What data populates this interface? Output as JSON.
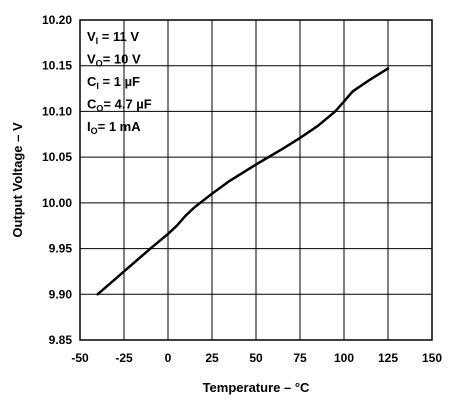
{
  "chart_data": {
    "type": "line",
    "xlabel": "Temperature – °C",
    "ylabel": "Output Voltage – V",
    "xlim": [
      -50,
      150
    ],
    "ylim": [
      9.85,
      10.2
    ],
    "xticks": [
      -50,
      -25,
      0,
      25,
      50,
      75,
      100,
      125,
      150
    ],
    "yticks": [
      9.85,
      9.9,
      9.95,
      10.0,
      10.05,
      10.1,
      10.15,
      10.2
    ],
    "xtick_labels": [
      "-50",
      "-25",
      "0",
      "25",
      "50",
      "75",
      "100",
      "125",
      "150"
    ],
    "ytick_labels": [
      "9.85",
      "9.90",
      "9.95",
      "10.00",
      "10.05",
      "10.10",
      "10.15",
      "10.20"
    ],
    "grid": true,
    "series": [
      {
        "color": "#000000",
        "x": [
          -40,
          -25,
          -10,
          0,
          5,
          10,
          15,
          25,
          35,
          50,
          65,
          75,
          85,
          95,
          100,
          105,
          115,
          125
        ],
        "y": [
          9.9,
          9.925,
          9.95,
          9.966,
          9.975,
          9.986,
          9.995,
          10.01,
          10.024,
          10.042,
          10.059,
          10.071,
          10.084,
          10.1,
          10.111,
          10.122,
          10.135,
          10.147
        ]
      }
    ],
    "conditions": [
      {
        "symbol": "V",
        "sub": "I",
        "value": " = 11 V"
      },
      {
        "symbol": "V",
        "sub": "O",
        "value": "= 10 V"
      },
      {
        "symbol": "C",
        "sub": "I",
        "value": " = 1 µF"
      },
      {
        "symbol": "C",
        "sub": "O",
        "value": "= 4.7 µF"
      },
      {
        "symbol": "I",
        "sub": "O",
        "value": "= 1 mA"
      }
    ]
  }
}
